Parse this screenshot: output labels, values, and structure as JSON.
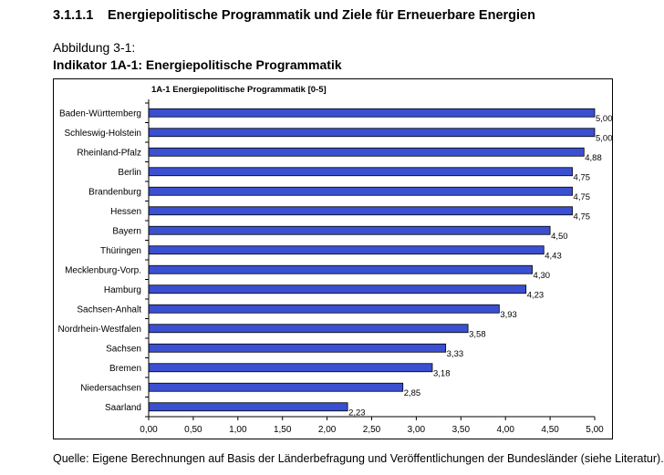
{
  "section": {
    "number": "3.1.1.1",
    "title": "Energiepolitische Programmatik und Ziele für Erneuerbare Energien"
  },
  "figure": {
    "label": "Abbildung 3-1:",
    "title": "Indikator 1A-1: Energiepolitische Programmatik"
  },
  "source_note": "Quelle:  Eigene Berechnungen auf Basis der Länderbefragung und Veröffentlichungen der Bundesländer (siehe Literatur).",
  "colors": {
    "bar_fill": "#3b4fd1",
    "bar_stroke": "#000000",
    "axis": "#000000"
  },
  "chart_data": {
    "type": "bar",
    "orientation": "horizontal",
    "title": "1A-1  Energiepolitische Programmatik [0-5]",
    "xlabel": "",
    "ylabel": "",
    "xlim": [
      0,
      5
    ],
    "tick_step": 0.5,
    "tick_labels": [
      "0,00",
      "0,50",
      "1,00",
      "1,50",
      "2,00",
      "2,50",
      "3,00",
      "3,50",
      "4,00",
      "4,50",
      "5,00"
    ],
    "categories": [
      "Baden-Württemberg",
      "Schleswig-Holstein",
      "Rheinland-Pfalz",
      "Berlin",
      "Brandenburg",
      "Hessen",
      "Bayern",
      "Thüringen",
      "Mecklenburg-Vorp.",
      "Hamburg",
      "Sachsen-Anhalt",
      "Nordrhein-Westfalen",
      "Sachsen",
      "Bremen",
      "Niedersachsen",
      "Saarland"
    ],
    "values": [
      5.0,
      5.0,
      4.88,
      4.75,
      4.75,
      4.75,
      4.5,
      4.43,
      4.3,
      4.23,
      3.93,
      3.58,
      3.33,
      3.18,
      2.85,
      2.23
    ],
    "value_labels": [
      "5,00",
      "5,00",
      "4,88",
      "4,75",
      "4,75",
      "4,75",
      "4,50",
      "4,43",
      "4,30",
      "4,23",
      "3,93",
      "3,58",
      "3,33",
      "3,18",
      "2,85",
      "2,23"
    ],
    "legend": "none",
    "grid": false
  }
}
